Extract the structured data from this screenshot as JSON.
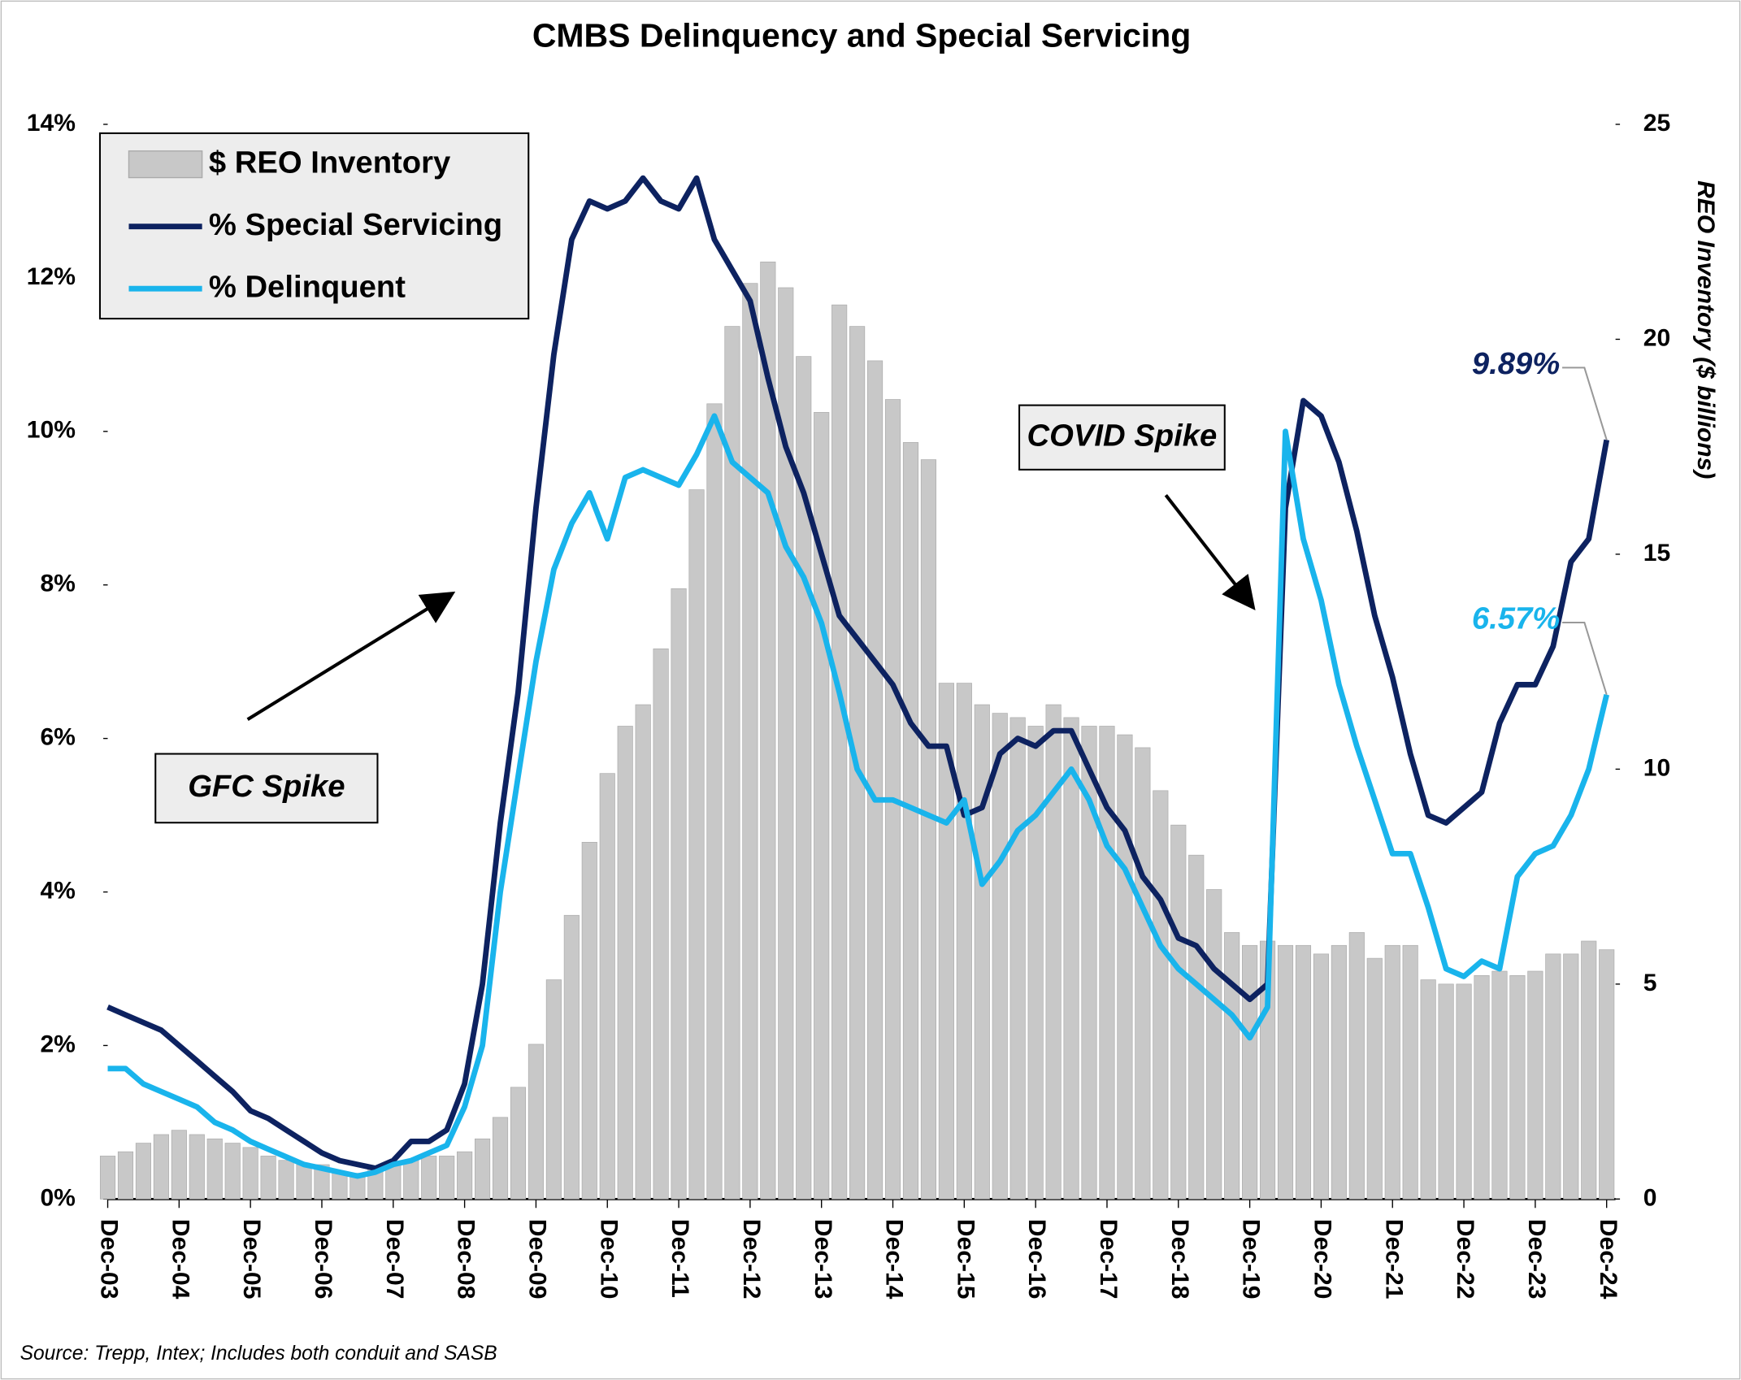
{
  "chart_data": {
    "type": "bar_line",
    "title": "CMBS Delinquency and Special Servicing",
    "y2label": "REO Inventory ($ billions)",
    "source": "Source: Trepp, Intex; Includes both conduit and SASB",
    "annotations": [
      {
        "text": "GFC Spike"
      },
      {
        "text": "COVID Spike"
      }
    ],
    "legend": "upper left",
    "categories": [
      "Dec-03",
      null,
      null,
      null,
      "Dec-04",
      null,
      null,
      null,
      "Dec-05",
      null,
      null,
      null,
      "Dec-06",
      null,
      null,
      null,
      "Dec-07",
      null,
      null,
      null,
      "Dec-08",
      null,
      null,
      null,
      "Dec-09",
      null,
      null,
      null,
      "Dec-10",
      null,
      null,
      null,
      "Dec-11",
      null,
      null,
      null,
      "Dec-12",
      null,
      null,
      null,
      "Dec-13",
      null,
      null,
      null,
      "Dec-14",
      null,
      null,
      null,
      "Dec-15",
      null,
      null,
      null,
      "Dec-16",
      null,
      null,
      null,
      "Dec-17",
      null,
      null,
      null,
      "Dec-18",
      null,
      null,
      null,
      "Dec-19",
      null,
      null,
      null,
      "Dec-20",
      null,
      null,
      null,
      "Dec-21",
      null,
      null,
      null,
      "Dec-22",
      null,
      null,
      null,
      "Dec-23",
      null,
      null,
      null,
      "Dec-24"
    ],
    "series": [
      {
        "name": "$ REO Inventory",
        "type": "bar",
        "axis": "y2",
        "color": "#c8c8c8",
        "values": [
          1.0,
          1.1,
          1.3,
          1.5,
          1.6,
          1.5,
          1.4,
          1.3,
          1.2,
          1.0,
          0.9,
          0.8,
          0.8,
          0.6,
          0.6,
          0.7,
          0.8,
          0.9,
          1.0,
          1.0,
          1.1,
          1.4,
          1.9,
          2.6,
          3.6,
          5.1,
          6.6,
          8.3,
          9.9,
          11.0,
          11.5,
          12.8,
          14.2,
          16.5,
          18.5,
          20.3,
          21.3,
          21.8,
          21.2,
          19.6,
          18.3,
          20.8,
          20.3,
          19.5,
          18.6,
          17.6,
          17.2,
          12.0,
          12.0,
          11.5,
          11.3,
          11.2,
          11.0,
          11.5,
          11.2,
          11.0,
          11.0,
          10.8,
          10.5,
          9.5,
          8.7,
          8.0,
          7.2,
          6.2,
          5.9,
          6.0,
          5.9,
          5.9,
          5.7,
          5.9,
          6.2,
          5.6,
          5.9,
          5.9,
          5.1,
          5.0,
          5.0,
          5.2,
          5.3,
          5.2,
          5.3,
          5.7,
          5.7,
          6.0,
          5.8
        ]
      },
      {
        "name": "% Special Servicing",
        "type": "line",
        "color": "#0d2260",
        "values": [
          2.5,
          2.4,
          2.3,
          2.2,
          2.0,
          1.8,
          1.6,
          1.4,
          1.15,
          1.05,
          0.9,
          0.75,
          0.6,
          0.5,
          0.45,
          0.4,
          0.5,
          0.75,
          0.75,
          0.9,
          1.5,
          2.8,
          4.9,
          6.6,
          9.0,
          11.0,
          12.5,
          13.0,
          12.9,
          13.0,
          13.3,
          13.0,
          12.9,
          13.3,
          12.5,
          12.1,
          11.7,
          10.7,
          9.8,
          9.2,
          8.4,
          7.6,
          7.3,
          7.0,
          6.7,
          6.2,
          5.9,
          5.9,
          5.0,
          5.1,
          5.8,
          6.0,
          5.9,
          6.1,
          6.1,
          5.6,
          5.1,
          4.8,
          4.2,
          3.9,
          3.4,
          3.3,
          3.0,
          2.8,
          2.6,
          2.8,
          9.0,
          10.4,
          10.2,
          9.6,
          8.7,
          7.6,
          6.8,
          5.8,
          5.0,
          4.9,
          5.1,
          5.3,
          6.2,
          6.7,
          6.7,
          7.2,
          8.3,
          8.6,
          9.89
        ],
        "value_labels": {
          "84": "9.89%"
        }
      },
      {
        "name": "% Delinquent",
        "type": "line",
        "color": "#19b4ec",
        "values": [
          1.7,
          1.7,
          1.5,
          1.4,
          1.3,
          1.2,
          1.0,
          0.9,
          0.75,
          0.65,
          0.55,
          0.45,
          0.4,
          0.35,
          0.3,
          0.35,
          0.45,
          0.5,
          0.6,
          0.7,
          1.2,
          2.0,
          4.0,
          5.5,
          7.0,
          8.2,
          8.8,
          9.2,
          8.6,
          9.4,
          9.5,
          9.4,
          9.3,
          9.7,
          10.2,
          9.6,
          9.4,
          9.2,
          8.5,
          8.1,
          7.5,
          6.6,
          5.6,
          5.2,
          5.2,
          5.1,
          5.0,
          4.9,
          5.2,
          4.1,
          4.4,
          4.8,
          5.0,
          5.3,
          5.6,
          5.2,
          4.6,
          4.3,
          3.8,
          3.3,
          3.0,
          2.8,
          2.6,
          2.4,
          2.1,
          2.5,
          10.0,
          8.6,
          7.8,
          6.7,
          5.9,
          5.2,
          4.5,
          4.5,
          3.8,
          3.0,
          2.9,
          3.1,
          3.0,
          4.2,
          4.5,
          4.6,
          5.0,
          5.6,
          6.57
        ],
        "value_labels": {
          "84": "6.57%"
        }
      }
    ],
    "ylim": [
      0,
      14
    ],
    "yticks": [
      {
        "value": 0,
        "label": "0%"
      },
      {
        "value": 2,
        "label": "2%"
      },
      {
        "value": 4,
        "label": "4%"
      },
      {
        "value": 6,
        "label": "6%"
      },
      {
        "value": 8,
        "label": "8%"
      },
      {
        "value": 10,
        "label": "10%"
      },
      {
        "value": 12,
        "label": "12%"
      },
      {
        "value": 14,
        "label": "14%"
      }
    ],
    "y2lim": [
      0,
      25
    ],
    "y2ticks": [
      0,
      5,
      10,
      15,
      20,
      25
    ],
    "grid": false
  }
}
